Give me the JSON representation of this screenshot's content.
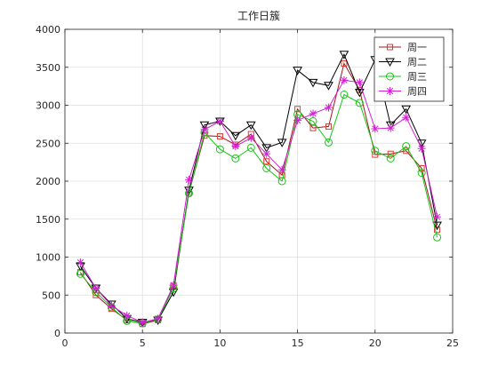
{
  "chart_data": {
    "type": "line",
    "title": "工作日簇",
    "xlabel": "",
    "ylabel": "",
    "xlim": [
      0,
      25
    ],
    "ylim": [
      0,
      4000
    ],
    "xticks": [
      0,
      5,
      10,
      15,
      20,
      25
    ],
    "yticks": [
      0,
      500,
      1000,
      1500,
      2000,
      2500,
      3000,
      3500,
      4000
    ],
    "grid": true,
    "legend_position": "top-right",
    "x": [
      1,
      2,
      3,
      4,
      5,
      6,
      7,
      8,
      9,
      10,
      11,
      12,
      13,
      14,
      15,
      16,
      17,
      18,
      19,
      20,
      21,
      22,
      23,
      24
    ],
    "series": [
      {
        "name": "周一",
        "color": "#a4161a",
        "marker_color": "#e03c31",
        "marker": "square",
        "values": [
          800,
          500,
          320,
          170,
          120,
          170,
          620,
          1850,
          2600,
          2590,
          2480,
          2620,
          2260,
          2080,
          2950,
          2700,
          2720,
          3550,
          3200,
          2350,
          2360,
          2400,
          2170,
          1360
        ]
      },
      {
        "name": "周二",
        "color": "#000000",
        "marker_color": "#000000",
        "marker": "triangle-down",
        "values": [
          880,
          590,
          380,
          190,
          140,
          170,
          540,
          1880,
          2740,
          2790,
          2600,
          2740,
          2440,
          2510,
          3460,
          3300,
          3260,
          3670,
          3170,
          3600,
          2740,
          2950,
          2500,
          1420
        ]
      },
      {
        "name": "周三",
        "color": "#18c418",
        "marker_color": "#18c418",
        "marker": "circle",
        "values": [
          780,
          540,
          340,
          160,
          130,
          180,
          590,
          1840,
          2640,
          2420,
          2300,
          2440,
          2170,
          2000,
          2880,
          2790,
          2510,
          3140,
          3030,
          2400,
          2300,
          2460,
          2110,
          1260
        ]
      },
      {
        "name": "周四",
        "color": "#d11fd1",
        "marker_color": "#d11fd1",
        "marker": "asterisk",
        "values": [
          930,
          590,
          360,
          230,
          140,
          190,
          630,
          2020,
          2680,
          2790,
          2460,
          2570,
          2360,
          2150,
          2800,
          2890,
          2970,
          3330,
          3300,
          2690,
          2700,
          2840,
          2430,
          1530
        ]
      }
    ]
  }
}
